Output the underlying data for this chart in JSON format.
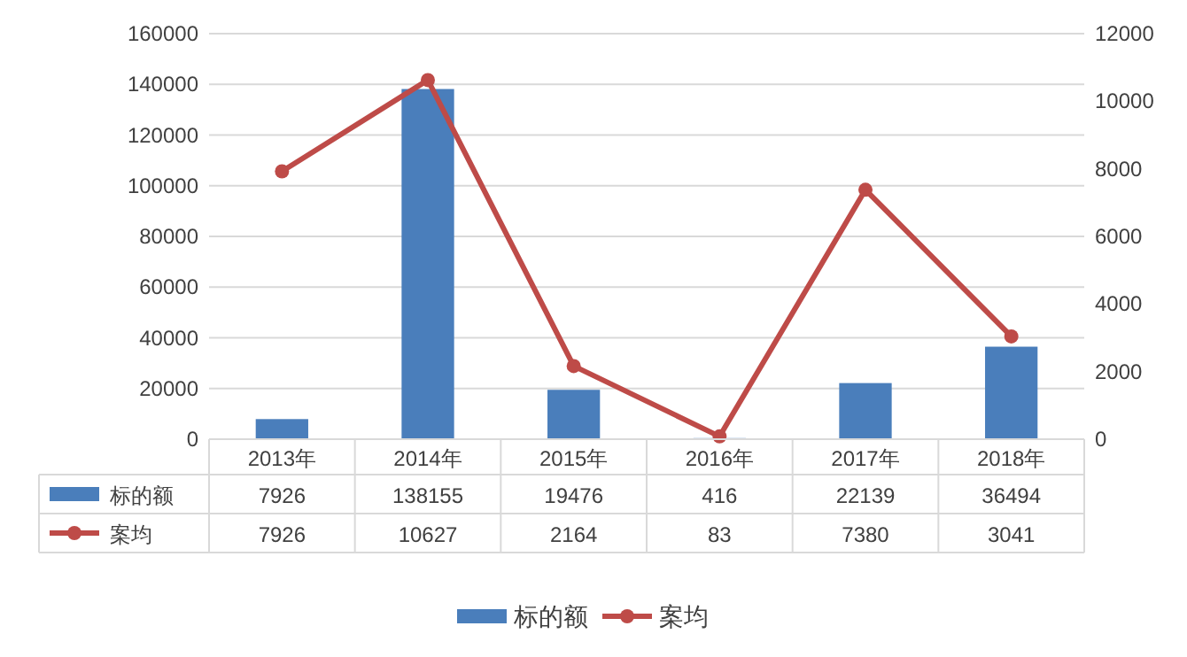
{
  "chart_data": {
    "type": "bar",
    "categories": [
      "2013年",
      "2014年",
      "2015年",
      "2016年",
      "2017年",
      "2018年"
    ],
    "series": [
      {
        "name": "标的额",
        "color": "#4a7ebb",
        "values": [
          7926,
          138155,
          19476,
          416,
          22139,
          36494
        ]
      },
      {
        "name": "案均",
        "type": "line",
        "axis": "y2",
        "color": "#be4b48",
        "values": [
          7926,
          10627,
          2164,
          83,
          7380,
          3041
        ]
      }
    ],
    "ylim": [
      0,
      160000
    ],
    "yticks": [
      0,
      20000,
      40000,
      60000,
      80000,
      100000,
      120000,
      140000,
      160000
    ],
    "y2lim": [
      0,
      12000
    ],
    "y2ticks": [
      0,
      2000,
      4000,
      6000,
      8000,
      10000,
      12000
    ],
    "grid": "y",
    "legend": "bottom",
    "marker": "circle",
    "line_style": "solid",
    "data_labels": true
  }
}
